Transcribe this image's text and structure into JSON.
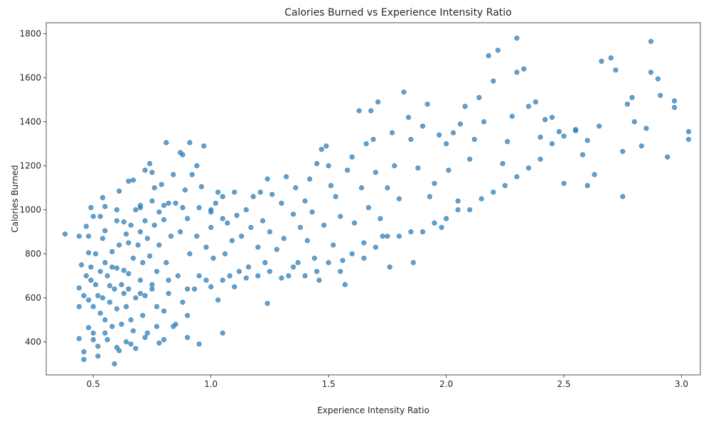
{
  "chart_data": {
    "type": "scatter",
    "title": "Calories Burned vs Experience Intensity Ratio",
    "xlabel": "Experience Intensity Ratio",
    "ylabel": "Calories Burned",
    "xlim": [
      0.3,
      3.08
    ],
    "ylim": [
      250,
      1850
    ],
    "xticks": [
      0.5,
      1.0,
      1.5,
      2.0,
      2.5,
      3.0
    ],
    "xtick_labels": [
      "0.5",
      "1.0",
      "1.5",
      "2.0",
      "2.5",
      "3.0"
    ],
    "yticks": [
      400,
      600,
      800,
      1000,
      1200,
      1400,
      1600,
      1800
    ],
    "ytick_labels": [
      "400",
      "600",
      "800",
      "1000",
      "1200",
      "1400",
      "1600",
      "1800"
    ],
    "grid": false,
    "color": "#1f77b4",
    "series": [
      {
        "points": [
          [
            0.38,
            890
          ],
          [
            0.44,
            880
          ],
          [
            0.44,
            645
          ],
          [
            0.44,
            560
          ],
          [
            0.44,
            415
          ],
          [
            0.45,
            750
          ],
          [
            0.46,
            610
          ],
          [
            0.46,
            355
          ],
          [
            0.46,
            320
          ],
          [
            0.47,
            700
          ],
          [
            0.47,
            925
          ],
          [
            0.48,
            880
          ],
          [
            0.48,
            805
          ],
          [
            0.48,
            590
          ],
          [
            0.48,
            465
          ],
          [
            0.49,
            1010
          ],
          [
            0.49,
            740
          ],
          [
            0.49,
            680
          ],
          [
            0.5,
            970
          ],
          [
            0.5,
            560
          ],
          [
            0.5,
            440
          ],
          [
            0.5,
            410
          ],
          [
            0.51,
            660
          ],
          [
            0.51,
            800
          ],
          [
            0.52,
            610
          ],
          [
            0.52,
            380
          ],
          [
            0.52,
            335
          ],
          [
            0.53,
            970
          ],
          [
            0.53,
            720
          ],
          [
            0.53,
            530
          ],
          [
            0.54,
            1055
          ],
          [
            0.54,
            870
          ],
          [
            0.54,
            600
          ],
          [
            0.55,
            905
          ],
          [
            0.55,
            1015
          ],
          [
            0.55,
            760
          ],
          [
            0.55,
            500
          ],
          [
            0.56,
            410
          ],
          [
            0.56,
            700
          ],
          [
            0.57,
            655
          ],
          [
            0.57,
            580
          ],
          [
            0.58,
            810
          ],
          [
            0.58,
            740
          ],
          [
            0.58,
            470
          ],
          [
            0.59,
            300
          ],
          [
            0.59,
            640
          ],
          [
            0.6,
            950
          ],
          [
            0.6,
            735
          ],
          [
            0.6,
            550
          ],
          [
            0.61,
            1085
          ],
          [
            0.61,
            840
          ],
          [
            0.61,
            360
          ],
          [
            0.62,
            660
          ],
          [
            0.62,
            480
          ],
          [
            0.63,
            945
          ],
          [
            0.63,
            725
          ],
          [
            0.63,
            620
          ],
          [
            0.64,
            890
          ],
          [
            0.64,
            560
          ],
          [
            0.64,
            400
          ],
          [
            0.65,
            1130
          ],
          [
            0.65,
            850
          ],
          [
            0.65,
            710
          ],
          [
            0.66,
            930
          ],
          [
            0.66,
            500
          ],
          [
            0.67,
            1135
          ],
          [
            0.67,
            780
          ],
          [
            0.67,
            450
          ],
          [
            0.68,
            1000
          ],
          [
            0.68,
            600
          ],
          [
            0.68,
            370
          ],
          [
            0.69,
            840
          ],
          [
            0.7,
            1020
          ],
          [
            0.7,
            900
          ],
          [
            0.7,
            680
          ],
          [
            0.71,
            760
          ],
          [
            0.71,
            520
          ],
          [
            0.72,
            1180
          ],
          [
            0.72,
            950
          ],
          [
            0.72,
            610
          ],
          [
            0.73,
            870
          ],
          [
            0.73,
            440
          ],
          [
            0.74,
            1210
          ],
          [
            0.74,
            790
          ],
          [
            0.75,
            1040
          ],
          [
            0.75,
            640
          ],
          [
            0.76,
            1100
          ],
          [
            0.76,
            930
          ],
          [
            0.77,
            720
          ],
          [
            0.77,
            470
          ],
          [
            0.78,
            990
          ],
          [
            0.78,
            840
          ],
          [
            0.78,
            395
          ],
          [
            0.79,
            1115
          ],
          [
            0.8,
            955
          ],
          [
            0.8,
            540
          ],
          [
            0.81,
            1305
          ],
          [
            0.81,
            760
          ],
          [
            0.82,
            1030
          ],
          [
            0.82,
            620
          ],
          [
            0.83,
            880
          ],
          [
            0.84,
            1160
          ],
          [
            0.84,
            470
          ],
          [
            0.85,
            1030
          ],
          [
            0.86,
            700
          ],
          [
            0.87,
            1260
          ],
          [
            0.87,
            900
          ],
          [
            0.88,
            1250
          ],
          [
            0.88,
            580
          ],
          [
            0.89,
            1090
          ],
          [
            0.9,
            960
          ],
          [
            0.9,
            420
          ],
          [
            0.91,
            1305
          ],
          [
            0.91,
            800
          ],
          [
            0.92,
            1160
          ],
          [
            0.93,
            640
          ],
          [
            0.94,
            1200
          ],
          [
            0.94,
            880
          ],
          [
            0.95,
            390
          ],
          [
            0.96,
            1105
          ],
          [
            0.97,
            1290
          ],
          [
            0.98,
            830
          ],
          [
            0.98,
            680
          ],
          [
            1.0,
            990
          ],
          [
            1.0,
            920
          ],
          [
            1.01,
            780
          ],
          [
            1.02,
            1030
          ],
          [
            1.03,
            1080
          ],
          [
            1.03,
            590
          ],
          [
            1.05,
            440
          ],
          [
            1.05,
            1060
          ],
          [
            1.06,
            800
          ],
          [
            1.07,
            940
          ],
          [
            1.08,
            700
          ],
          [
            1.09,
            860
          ],
          [
            1.1,
            1080
          ],
          [
            1.11,
            975
          ],
          [
            1.12,
            720
          ],
          [
            1.13,
            880
          ],
          [
            1.15,
            1000
          ],
          [
            1.16,
            740
          ],
          [
            1.17,
            920
          ],
          [
            1.18,
            1060
          ],
          [
            1.2,
            830
          ],
          [
            1.21,
            1080
          ],
          [
            1.22,
            950
          ],
          [
            1.23,
            760
          ],
          [
            1.24,
            1140
          ],
          [
            1.24,
            575
          ],
          [
            1.25,
            900
          ],
          [
            1.26,
            1070
          ],
          [
            1.28,
            820
          ],
          [
            1.3,
            1030
          ],
          [
            1.31,
            870
          ],
          [
            1.32,
            1150
          ],
          [
            1.33,
            700
          ],
          [
            1.35,
            980
          ],
          [
            1.36,
            1100
          ],
          [
            1.37,
            760
          ],
          [
            1.38,
            920
          ],
          [
            1.4,
            1040
          ],
          [
            1.41,
            860
          ],
          [
            1.42,
            1140
          ],
          [
            1.43,
            990
          ],
          [
            1.44,
            780
          ],
          [
            1.45,
            1210
          ],
          [
            1.46,
            680
          ],
          [
            1.47,
            1275
          ],
          [
            1.48,
            930
          ],
          [
            1.49,
            1290
          ],
          [
            1.5,
            1200
          ],
          [
            1.51,
            1110
          ],
          [
            1.52,
            840
          ],
          [
            1.53,
            1060
          ],
          [
            1.55,
            970
          ],
          [
            1.56,
            770
          ],
          [
            1.57,
            660
          ],
          [
            1.58,
            1180
          ],
          [
            1.6,
            1240
          ],
          [
            1.61,
            940
          ],
          [
            1.63,
            1450
          ],
          [
            1.64,
            1100
          ],
          [
            1.65,
            850
          ],
          [
            1.66,
            1300
          ],
          [
            1.67,
            1010
          ],
          [
            1.68,
            1450
          ],
          [
            1.69,
            1320
          ],
          [
            1.7,
            1170
          ],
          [
            1.71,
            1490
          ],
          [
            1.72,
            960
          ],
          [
            1.73,
            880
          ],
          [
            1.75,
            1100
          ],
          [
            1.76,
            740
          ],
          [
            1.77,
            1350
          ],
          [
            1.78,
            1200
          ],
          [
            1.8,
            1050
          ],
          [
            1.82,
            1535
          ],
          [
            1.84,
            1420
          ],
          [
            1.85,
            1320
          ],
          [
            1.86,
            760
          ],
          [
            1.88,
            1190
          ],
          [
            1.9,
            1380
          ],
          [
            1.92,
            1480
          ],
          [
            1.93,
            1060
          ],
          [
            1.95,
            1120
          ],
          [
            1.97,
            1340
          ],
          [
            1.98,
            920
          ],
          [
            2.0,
            1300
          ],
          [
            2.01,
            1180
          ],
          [
            2.03,
            1350
          ],
          [
            2.05,
            1000
          ],
          [
            2.06,
            1390
          ],
          [
            2.08,
            1470
          ],
          [
            2.1,
            1230
          ],
          [
            2.12,
            1320
          ],
          [
            2.14,
            1510
          ],
          [
            2.16,
            1400
          ],
          [
            2.18,
            1700
          ],
          [
            2.2,
            1585
          ],
          [
            2.22,
            1725
          ],
          [
            2.24,
            1210
          ],
          [
            2.26,
            1310
          ],
          [
            2.28,
            1425
          ],
          [
            2.3,
            1625
          ],
          [
            2.3,
            1780
          ],
          [
            2.33,
            1640
          ],
          [
            2.35,
            1470
          ],
          [
            2.38,
            1490
          ],
          [
            2.4,
            1330
          ],
          [
            2.42,
            1410
          ],
          [
            2.45,
            1420
          ],
          [
            2.48,
            1355
          ],
          [
            2.5,
            1335
          ],
          [
            2.55,
            1365
          ],
          [
            2.58,
            1250
          ],
          [
            2.6,
            1315
          ],
          [
            2.63,
            1160
          ],
          [
            2.66,
            1675
          ],
          [
            2.7,
            1690
          ],
          [
            2.72,
            1635
          ],
          [
            2.75,
            1265
          ],
          [
            2.75,
            1060
          ],
          [
            2.77,
            1480
          ],
          [
            2.79,
            1510
          ],
          [
            2.8,
            1400
          ],
          [
            2.83,
            1290
          ],
          [
            2.85,
            1370
          ],
          [
            2.87,
            1625
          ],
          [
            2.87,
            1765
          ],
          [
            2.9,
            1595
          ],
          [
            2.91,
            1520
          ],
          [
            2.94,
            1240
          ],
          [
            2.97,
            1495
          ],
          [
            2.97,
            1465
          ],
          [
            3.03,
            1355
          ],
          [
            3.03,
            1320
          ],
          [
            0.55,
            440
          ],
          [
            0.6,
            375
          ],
          [
            0.66,
            390
          ],
          [
            0.72,
            420
          ],
          [
            0.77,
            560
          ],
          [
            0.8,
            410
          ],
          [
            0.85,
            480
          ],
          [
            0.9,
            520
          ],
          [
            0.6,
            1000
          ],
          [
            0.7,
            1010
          ],
          [
            0.75,
            1170
          ],
          [
            0.8,
            1020
          ],
          [
            0.88,
            1010
          ],
          [
            0.95,
            1010
          ],
          [
            1.0,
            1000
          ],
          [
            1.05,
            960
          ],
          [
            0.65,
            640
          ],
          [
            0.7,
            620
          ],
          [
            0.75,
            660
          ],
          [
            0.82,
            680
          ],
          [
            0.9,
            640
          ],
          [
            0.95,
            700
          ],
          [
            1.0,
            650
          ],
          [
            1.05,
            680
          ],
          [
            1.1,
            650
          ],
          [
            1.15,
            690
          ],
          [
            1.2,
            700
          ],
          [
            1.25,
            720
          ],
          [
            1.3,
            690
          ],
          [
            1.35,
            740
          ],
          [
            1.4,
            700
          ],
          [
            1.45,
            720
          ],
          [
            1.5,
            760
          ],
          [
            1.55,
            720
          ],
          [
            1.6,
            800
          ],
          [
            1.65,
            780
          ],
          [
            1.7,
            830
          ],
          [
            1.75,
            880
          ],
          [
            1.8,
            880
          ],
          [
            1.85,
            900
          ],
          [
            1.9,
            900
          ],
          [
            1.95,
            940
          ],
          [
            2.0,
            960
          ],
          [
            2.05,
            1040
          ],
          [
            2.1,
            1000
          ],
          [
            2.15,
            1050
          ],
          [
            2.2,
            1080
          ],
          [
            2.25,
            1110
          ],
          [
            2.3,
            1150
          ],
          [
            2.35,
            1190
          ],
          [
            2.4,
            1230
          ],
          [
            2.45,
            1300
          ],
          [
            2.5,
            1120
          ],
          [
            2.55,
            1360
          ],
          [
            2.6,
            1110
          ],
          [
            2.65,
            1380
          ]
        ]
      }
    ]
  }
}
